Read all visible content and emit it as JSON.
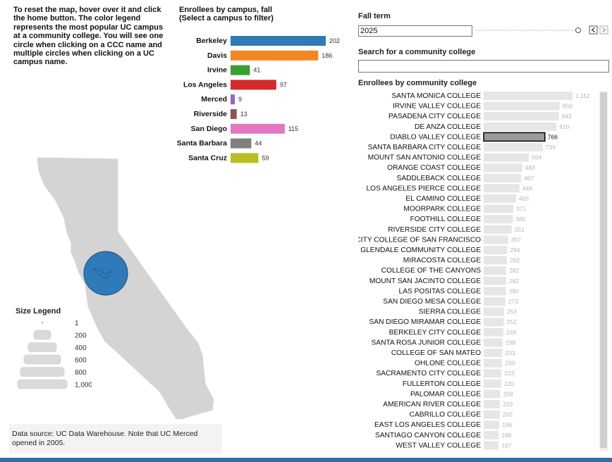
{
  "instructions": "To reset the map, hover over it and click the home button. The color legend represents the most popular UC campus at a community college. You will see one circle when clicking on a CCC name and multiple circles when clicking on a UC campus name.",
  "campus_chart": {
    "title_line1": "Enrollees by campus, fall",
    "title_line2": "(Select a campus to filter)"
  },
  "chart_data": [
    {
      "type": "bar",
      "orientation": "horizontal",
      "title": "Enrollees by campus, fall (Select a campus to filter)",
      "categories": [
        "Berkeley",
        "Davis",
        "Irvine",
        "Los Angeles",
        "Merced",
        "Riverside",
        "San Diego",
        "Santa Barbara",
        "Santa Cruz"
      ],
      "values": [
        202,
        186,
        41,
        97,
        9,
        13,
        115,
        44,
        59
      ],
      "colors": [
        "#2f7ab8",
        "#f58520",
        "#36a02c",
        "#d62a2a",
        "#9467bd",
        "#8c564b",
        "#e377c2",
        "#7f7f7f",
        "#bcbd22"
      ]
    },
    {
      "type": "bar",
      "orientation": "horizontal",
      "title": "Enrollees by community college",
      "categories": [
        "SANTA MONICA COLLEGE",
        "IRVINE VALLEY COLLEGE",
        "PASADENA CITY COLLEGE",
        "DE ANZA COLLEGE",
        "DIABLO VALLEY COLLEGE",
        "SANTA BARBARA CITY COLLEGE",
        "MOUNT SAN ANTONIO COLLEGE",
        "ORANGE COAST COLLEGE",
        "SADDLEBACK COLLEGE",
        "LOS ANGELES PIERCE COLLEGE",
        "EL CAMINO COLLEGE",
        "MOORPARK COLLEGE",
        "FOOTHILL COLLEGE",
        "RIVERSIDE CITY COLLEGE",
        "CITY COLLEGE OF SAN FRANCISCO",
        "GLENDALE COMMUNITY COLLEGE",
        "MIRACOSTA COLLEGE",
        "COLLEGE OF THE CANYONS",
        "MOUNT SAN JACINTO COLLEGE",
        "LAS POSITAS COLLEGE",
        "SAN DIEGO MESA COLLEGE",
        "SIERRA COLLEGE",
        "SAN DIEGO MIRAMAR COLLEGE",
        "BERKELEY CITY COLLEGE",
        "SANTA ROSA JUNIOR COLLEGE",
        "COLLEGE OF SAN MATEO",
        "OHLONE COLLEGE",
        "SACRAMENTO CITY COLLEGE",
        "FULLERTON COLLEGE",
        "PALOMAR COLLEGE",
        "AMERICAN RIVER COLLEGE",
        "CABRILLO COLLEGE",
        "EAST LOS ANGELES COLLEGE",
        "SANTIAGO CANYON COLLEGE",
        "WEST VALLEY COLLEGE"
      ],
      "value_labels": [
        "1,112",
        "950",
        "942",
        "910",
        "766",
        "739",
        "564",
        "483",
        "467",
        "448",
        "405",
        "371",
        "365",
        "351",
        "307",
        "294",
        "292",
        "282",
        "282",
        "280",
        "273",
        "253",
        "252",
        "249",
        "238",
        "233",
        "230",
        "223",
        "220",
        "208",
        "203",
        "202",
        "196",
        "188",
        "187"
      ],
      "values": [
        1112,
        950,
        942,
        910,
        766,
        739,
        564,
        483,
        467,
        448,
        405,
        371,
        365,
        351,
        307,
        294,
        292,
        282,
        282,
        280,
        273,
        253,
        252,
        249,
        238,
        233,
        230,
        223,
        220,
        208,
        203,
        202,
        196,
        188,
        187
      ],
      "selected": "DIABLO VALLEY COLLEGE"
    }
  ],
  "filters": {
    "term_label": "Fall term",
    "term_value": "2025",
    "search_label": "Search for a community college",
    "search_placeholder": ""
  },
  "ccc_chart": {
    "title": "Enrollees by community college"
  },
  "size_legend": {
    "title": "Size Legend",
    "labels": [
      "1",
      "200",
      "400",
      "600",
      "800",
      "1,000"
    ]
  },
  "source_note_line1": "Data source: UC Data Warehouse. Note that UC Merced",
  "source_note_line2": "opened in 2005.",
  "icons": {
    "prev": "chevron-left-icon",
    "next": "chevron-right-icon",
    "slider": "slider-handle-icon"
  },
  "colors": {
    "map_fill": "#d4d4d4",
    "circle": "#2f7ab8",
    "ccc_bar": "#e6e6e6",
    "selected_bar": "#9b9b9b"
  }
}
